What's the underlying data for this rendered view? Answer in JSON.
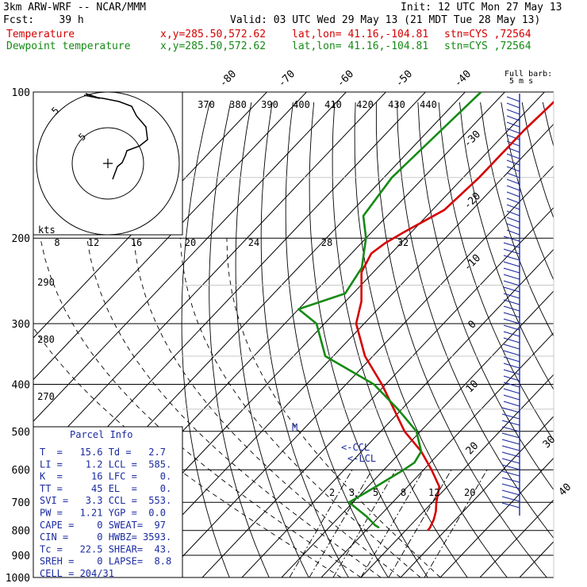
{
  "header": {
    "model": "3km ARW-WRF -- NCAR/MMM",
    "init": "Init: 12 UTC Mon 27 May 13",
    "fcst": "Fcst:    39 h",
    "valid": "Valid: 03 UTC Wed 29 May 13 (21 MDT Tue 28 May 13)",
    "rows": [
      {
        "label": "Temperature",
        "xy": "x,y=285.50,572.62",
        "latlon": "lat,lon= 41.16,-104.81",
        "stn": "stn=CYS ,72564",
        "color": "#d40000"
      },
      {
        "label": "Dewpoint temperature",
        "xy": "x,y=285.50,572.62",
        "latlon": "lat,lon= 41.16,-104.81",
        "stn": "stn=CYS ,72564",
        "color": "#158a15"
      }
    ]
  },
  "chart_data": {
    "type": "line",
    "chart_kind": "skew-T log-p",
    "pressure_levels": [
      100,
      200,
      300,
      400,
      500,
      600,
      700,
      800,
      900,
      1000
    ],
    "temperature_tick_labels": [
      "-80",
      "-70",
      "-60",
      "-50",
      "-40",
      "-30",
      "-20",
      "-10",
      "0",
      "10",
      "20",
      "30",
      "40"
    ],
    "theta_labels": [
      "370",
      "380",
      "390",
      "400",
      "410",
      "420",
      "430",
      "440"
    ],
    "theta_labels_left": [
      "290",
      "280",
      "270"
    ],
    "mixing_ratio_labels": [
      "2",
      "3",
      "5",
      "8",
      "12",
      "20"
    ],
    "colors": {
      "temperature": "#d40000",
      "dewpoint": "#158a15",
      "parcel": "#1a2aa0"
    },
    "series": [
      {
        "name": "Temperature",
        "p": [
          100,
          120,
          150,
          175,
          195,
          205,
          215,
          235,
          270,
          300,
          350,
          400,
          450,
          500,
          550,
          600,
          650,
          700,
          730,
          760,
          790,
          800
        ],
        "t": [
          -55,
          -56,
          -56,
          -57,
          -62,
          -64,
          -65,
          -63,
          -56,
          -52,
          -42,
          -31,
          -22,
          -14,
          -5,
          2,
          8,
          11,
          13,
          14.5,
          15.5,
          15.6
        ]
      },
      {
        "name": "Dewpoint temperature",
        "p": [
          100,
          150,
          180,
          200,
          230,
          260,
          280,
          300,
          350,
          400,
          450,
          500,
          550,
          580,
          600,
          650,
          700,
          750,
          780,
          790
        ],
        "t": [
          -76,
          -78,
          -76,
          -70,
          -64,
          -62,
          -70,
          -62,
          -52,
          -33,
          -21,
          -11,
          -5,
          -4,
          -5,
          -8,
          -11,
          -3,
          1,
          2.7
        ]
      }
    ]
  },
  "hodograph": {
    "kts_label": "kts",
    "speed_labels": [
      "8",
      "12",
      "16",
      "20",
      "24",
      "28",
      "32"
    ],
    "ring_labels": [
      "5",
      "5"
    ]
  },
  "wind_barbs": {
    "label_line1": "Full barb:",
    "label_line2": "5 m s"
  },
  "markers": {
    "ccl": "<-CCL",
    "lcl": "<-LCL",
    "m": "M"
  },
  "parcel_info": {
    "title": "Parcel Info",
    "rows": [
      "T  =   15.6 Td =   2.7",
      "LI =    1.2 LCL =  585.",
      "K  =     16 LFC =    0.",
      "TT =     45 EL  =    0.",
      "SVI =   3.3 CCL =  553.",
      "PW =   1.21 YGP =  0.0",
      "CAPE =    0 SWEAT=  97",
      "CIN =     0 HWBZ= 3593.",
      "Tc =   22.5 SHEAR=  43.",
      "SREH =    0 LAPSE=  8.8",
      "CELL = 204/31"
    ]
  }
}
